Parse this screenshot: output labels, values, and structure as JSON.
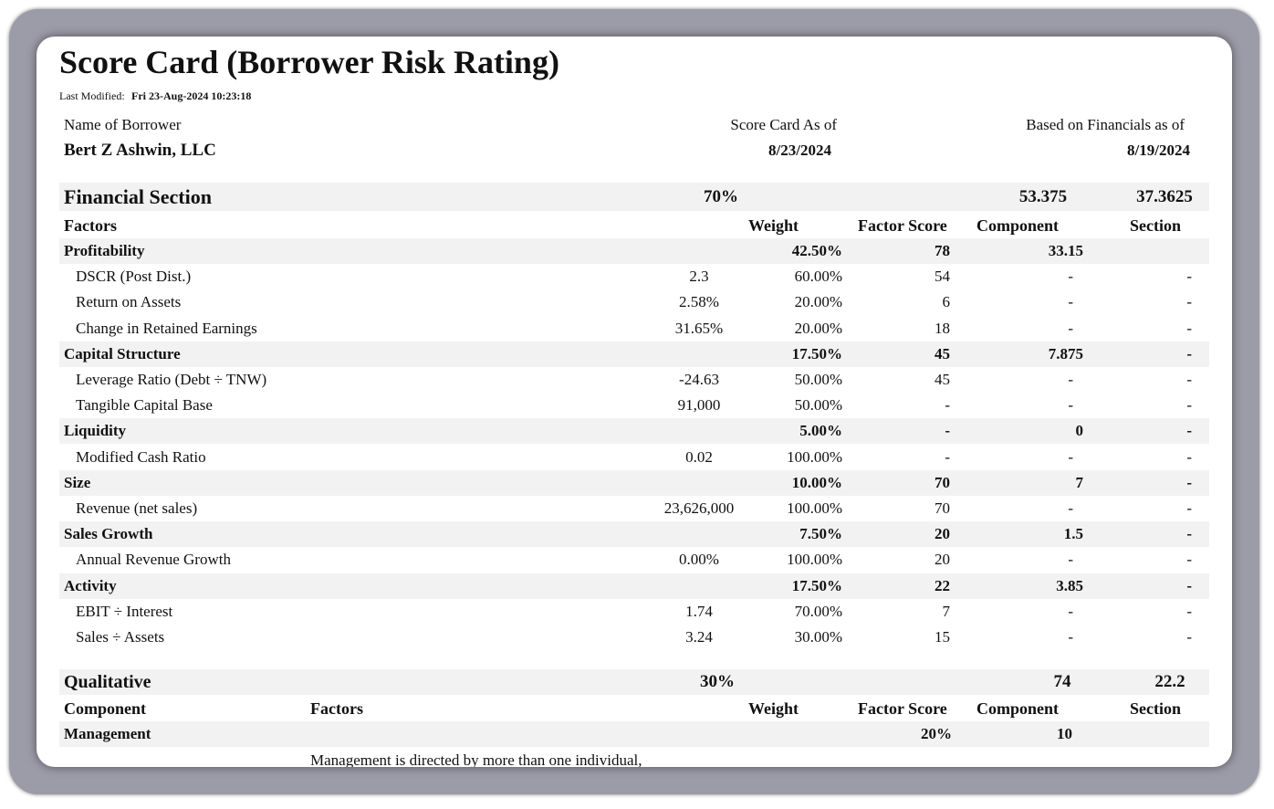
{
  "header": {
    "title": "Score Card (Borrower Risk Rating)",
    "last_modified_label": "Last Modified:",
    "last_modified": "Fri 23-Aug-2024 10:23:18"
  },
  "borrower": {
    "name_label": "Name of Borrower",
    "name": "Bert Z Ashwin, LLC",
    "score_card_label": "Score Card As of",
    "score_card_date": "8/23/2024",
    "financials_label": "Based on Financials as of",
    "financials_date": "8/19/2024"
  },
  "financial": {
    "title": "Financial Section",
    "weight": "70%",
    "component": "53.375",
    "section": "37.3625",
    "columns": [
      "Factors",
      "Weight",
      "Factor Score",
      "Component",
      "Section"
    ],
    "groups": [
      {
        "name": "Profitability",
        "weight": "42.50%",
        "score": "78",
        "component": "33.15",
        "items": [
          {
            "name": "DSCR (Post Dist.)",
            "value": "2.3",
            "weight": "60.00%",
            "score": "54",
            "component": "-",
            "section": "-"
          },
          {
            "name": "Return on Assets",
            "value": "2.58%",
            "weight": "20.00%",
            "score": "6",
            "component": "-",
            "section": "-"
          },
          {
            "name": "Change in Retained Earnings",
            "value": "31.65%",
            "weight": "20.00%",
            "score": "18",
            "component": "-",
            "section": "-"
          }
        ]
      },
      {
        "name": "Capital Structure",
        "weight": "17.50%",
        "score": "45",
        "component": "7.875",
        "section": "-",
        "items": [
          {
            "name": "Leverage Ratio (Debt ÷ TNW)",
            "value": "-24.63",
            "weight": "50.00%",
            "score": "45",
            "component": "-",
            "section": "-"
          },
          {
            "name": "Tangible Capital Base",
            "value": "91,000",
            "weight": "50.00%",
            "score": "-",
            "component": "-",
            "section": "-"
          }
        ]
      },
      {
        "name": "Liquidity",
        "weight": "5.00%",
        "score": "-",
        "component": "0",
        "section": "-",
        "items": [
          {
            "name": "Modified Cash Ratio",
            "value": "0.02",
            "weight": "100.00%",
            "score": "-",
            "component": "-",
            "section": "-"
          }
        ]
      },
      {
        "name": "Size",
        "weight": "10.00%",
        "score": "70",
        "component": "7",
        "section": "-",
        "items": [
          {
            "name": "Revenue (net sales)",
            "value": "23,626,000",
            "weight": "100.00%",
            "score": "70",
            "component": "-",
            "section": "-"
          }
        ]
      },
      {
        "name": "Sales Growth",
        "weight": "7.50%",
        "score": "20",
        "component": "1.5",
        "section": "-",
        "items": [
          {
            "name": "Annual Revenue Growth",
            "value": "0.00%",
            "weight": "100.00%",
            "score": "20",
            "component": "-",
            "section": "-"
          }
        ]
      },
      {
        "name": "Activity",
        "weight": "17.50%",
        "score": "22",
        "component": "3.85",
        "section": "-",
        "items": [
          {
            "name": "EBIT ÷ Interest",
            "value": "1.74",
            "weight": "70.00%",
            "score": "7",
            "component": "-",
            "section": "-"
          },
          {
            "name": "Sales ÷ Assets",
            "value": "3.24",
            "weight": "30.00%",
            "score": "15",
            "component": "-",
            "section": "-"
          }
        ]
      }
    ]
  },
  "qualitative": {
    "title": "Qualitative",
    "weight": "30%",
    "component": "74",
    "section": "22.2",
    "columns": [
      "Component",
      "Factors",
      "Weight",
      "Factor Score",
      "Component",
      "Section"
    ],
    "rows": [
      {
        "name": "Management",
        "score": "20%",
        "component": "10"
      }
    ],
    "text": "Management is directed by more than one individual,"
  }
}
